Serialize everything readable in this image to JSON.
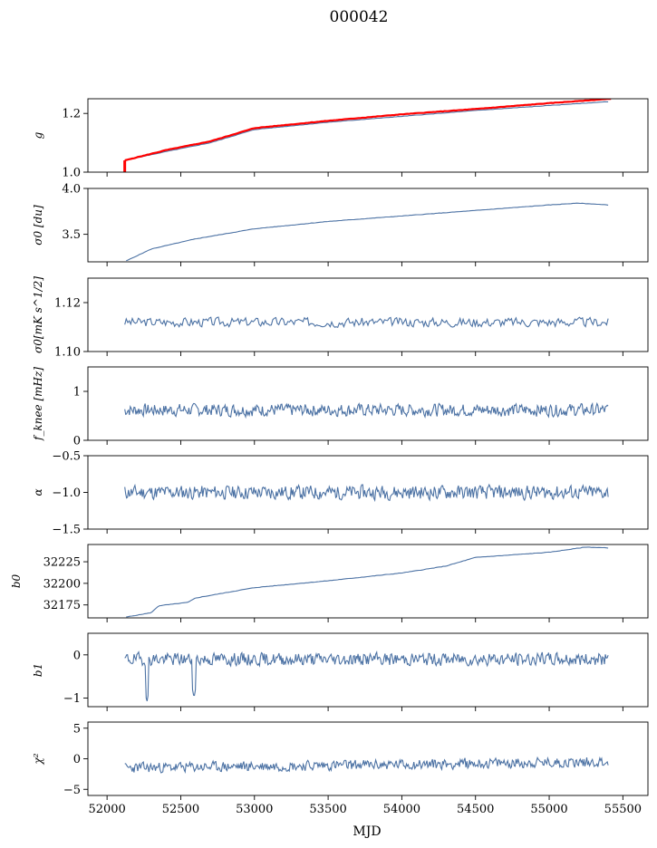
{
  "title": "000042",
  "xlabel": "MJD",
  "x_ticks": [
    52000,
    52500,
    53000,
    53500,
    54000,
    54500,
    55000,
    55500
  ],
  "colors": {
    "series": "#4c72a4",
    "highlight": "#ff0000",
    "axis": "#000000"
  },
  "chart_data": [
    {
      "type": "line",
      "ylabel": "g",
      "ylim": [
        1.0,
        1.25
      ],
      "y_ticks": [
        1.0,
        1.2
      ],
      "y_tick_labels": [
        "1.0",
        "1.2"
      ],
      "series": [
        {
          "color": "#4c72a4",
          "x": [
            52120,
            52400,
            52700,
            53000,
            53500,
            54000,
            54500,
            55000,
            55400
          ],
          "values": [
            1.04,
            1.07,
            1.1,
            1.145,
            1.17,
            1.19,
            1.21,
            1.227,
            1.24
          ]
        },
        {
          "color": "#ff0000",
          "x": [
            52120,
            52400,
            52700,
            53000,
            53500,
            54000,
            54500,
            55000,
            55420
          ],
          "values": [
            1.04,
            1.075,
            1.105,
            1.15,
            1.175,
            1.197,
            1.215,
            1.235,
            1.25
          ]
        }
      ],
      "markers": [
        {
          "x": 52120,
          "y_from": 1.0,
          "y_to": 1.04,
          "color": "#ff0000"
        }
      ]
    },
    {
      "type": "line",
      "ylabel": "σ0 [du]",
      "ylim": [
        3.2,
        4.0
      ],
      "y_ticks": [
        3.5,
        4.0
      ],
      "y_tick_labels": [
        "3.5",
        "4.0"
      ],
      "series": [
        {
          "color": "#4c72a4",
          "x": [
            52130,
            52300,
            52600,
            53000,
            53500,
            54000,
            54500,
            55000,
            55200,
            55400
          ],
          "values": [
            3.21,
            3.34,
            3.45,
            3.56,
            3.64,
            3.7,
            3.76,
            3.82,
            3.84,
            3.82
          ]
        }
      ]
    },
    {
      "type": "line",
      "ylabel": "σ0[mK s^1/2]",
      "ylim": [
        1.1,
        1.13
      ],
      "y_ticks": [
        1.1,
        1.12
      ],
      "y_tick_labels": [
        "1.10",
        "1.12"
      ],
      "series": [
        {
          "color": "#4c72a4",
          "noise": {
            "base": 1.112,
            "amp": 0.0018,
            "seed": 3
          },
          "x_range": [
            52120,
            55400
          ],
          "n": 320
        }
      ]
    },
    {
      "type": "line",
      "ylabel": "f_knee [mHz]",
      "ylim": [
        0,
        1.5
      ],
      "y_ticks": [
        0,
        1
      ],
      "y_tick_labels": [
        "0",
        "1"
      ],
      "series": [
        {
          "color": "#4c72a4",
          "noise": {
            "base": 0.62,
            "amp": 0.12,
            "seed": 7
          },
          "x_range": [
            52120,
            55400
          ],
          "n": 520
        }
      ]
    },
    {
      "type": "line",
      "ylabel": "α",
      "ylim": [
        -1.5,
        -0.5
      ],
      "y_ticks": [
        -1.5,
        -1.0,
        -0.5
      ],
      "y_tick_labels": [
        "−1.5",
        "−1.0",
        "−0.5"
      ],
      "series": [
        {
          "color": "#4c72a4",
          "noise": {
            "base": -1.0,
            "amp": 0.09,
            "seed": 11
          },
          "x_range": [
            52120,
            55400
          ],
          "n": 520
        }
      ]
    },
    {
      "type": "line",
      "ylabel": "b0",
      "ylim": [
        32160,
        32245
      ],
      "y_ticks": [
        32175,
        32200,
        32225
      ],
      "y_tick_labels": [
        "32175",
        "32200",
        "32225"
      ],
      "series": [
        {
          "color": "#4c72a4",
          "x": [
            52130,
            52300,
            52350,
            52550,
            52600,
            53000,
            53500,
            54000,
            54300,
            54500,
            55000,
            55250,
            55400
          ],
          "values": [
            32161,
            32166,
            32174,
            32178,
            32183,
            32195,
            32203,
            32212,
            32220,
            32230,
            32236,
            32242,
            32241
          ]
        }
      ]
    },
    {
      "type": "line",
      "ylabel": "b1",
      "ylim": [
        -1.2,
        0.5
      ],
      "y_ticks": [
        -1,
        0
      ],
      "y_tick_labels": [
        "−1",
        "0"
      ],
      "series": [
        {
          "color": "#4c72a4",
          "noise": {
            "base": -0.1,
            "amp": 0.14,
            "seed": 19
          },
          "x_range": [
            52120,
            55400
          ],
          "n": 520,
          "dips": [
            {
              "x": 52270,
              "y": -1.1
            },
            {
              "x": 52590,
              "y": -1.0
            }
          ]
        }
      ]
    },
    {
      "type": "line",
      "ylabel": "χ²",
      "ylim": [
        -6,
        6
      ],
      "y_ticks": [
        -5,
        0,
        5
      ],
      "y_tick_labels": [
        "−5",
        "0",
        "5"
      ],
      "series": [
        {
          "color": "#4c72a4",
          "noise": {
            "base": -1.5,
            "amp": 0.8,
            "seed": 23,
            "drift": 1.0
          },
          "x_range": [
            52120,
            55400
          ],
          "n": 520
        }
      ]
    }
  ]
}
